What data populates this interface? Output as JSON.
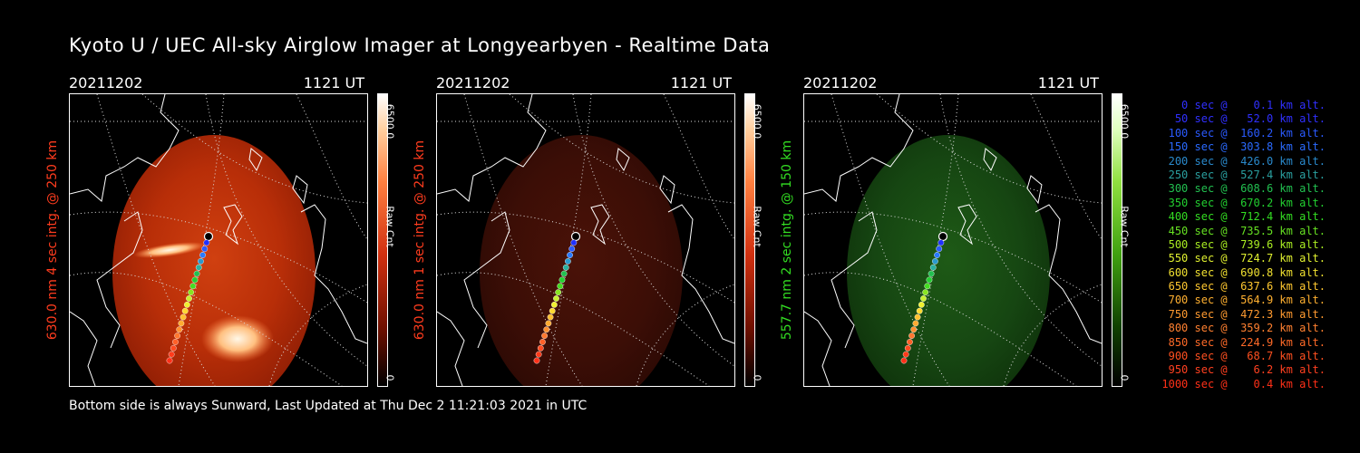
{
  "title": "Kyoto U / UEC All-sky Airglow Imager at Longyearbyen - Realtime Data",
  "footer": "Bottom side is always Sunward, Last Updated at Thu Dec  2 11:21:03 2021 in UTC",
  "panels": [
    {
      "date": "20211202",
      "time": "1121 UT",
      "ylabel": "630.0 nm 4 sec intg. @ 250 km",
      "ylabel_color": "#ff3c1e",
      "colorbar_max": "6500.0",
      "colorbar_unit": "Raw Cnt",
      "colorbar_min": "0",
      "theme": "red-bright"
    },
    {
      "date": "20211202",
      "time": "1121 UT",
      "ylabel": "630.0 nm 1 sec intg. @ 250 km",
      "ylabel_color": "#ff3c1e",
      "colorbar_max": "6500.0",
      "colorbar_unit": "Raw Cnt",
      "colorbar_min": "0",
      "theme": "red-dim"
    },
    {
      "date": "20211202",
      "time": "1121 UT",
      "ylabel": "557.7 nm 2 sec intg. @ 150 km",
      "ylabel_color": "#33dd22",
      "colorbar_max": "6500.0",
      "colorbar_unit": "Raw Cnt",
      "colorbar_min": "0",
      "theme": "green"
    }
  ],
  "legend": [
    {
      "text": "   0 sec @    0.1 km alt.",
      "color": "#3030ff"
    },
    {
      "text": "  50 sec @   52.0 km alt.",
      "color": "#3030ff"
    },
    {
      "text": " 100 sec @  160.2 km alt.",
      "color": "#2a5aff"
    },
    {
      "text": " 150 sec @  303.8 km alt.",
      "color": "#2a6aff"
    },
    {
      "text": " 200 sec @  426.0 km alt.",
      "color": "#2a8acc"
    },
    {
      "text": " 250 sec @  527.4 km alt.",
      "color": "#2aa0a0"
    },
    {
      "text": " 300 sec @  608.6 km alt.",
      "color": "#22c050"
    },
    {
      "text": " 350 sec @  670.2 km alt.",
      "color": "#22d030"
    },
    {
      "text": " 400 sec @  712.4 km alt.",
      "color": "#33dd22"
    },
    {
      "text": " 450 sec @  735.5 km alt.",
      "color": "#66e022"
    },
    {
      "text": " 500 sec @  739.6 km alt.",
      "color": "#aaee22"
    },
    {
      "text": " 550 sec @  724.7 km alt.",
      "color": "#e0f030"
    },
    {
      "text": " 600 sec @  690.8 km alt.",
      "color": "#f0e030"
    },
    {
      "text": " 650 sec @  637.6 km alt.",
      "color": "#ffc830"
    },
    {
      "text": " 700 sec @  564.9 km alt.",
      "color": "#ffb030"
    },
    {
      "text": " 750 sec @  472.3 km alt.",
      "color": "#ff9a30"
    },
    {
      "text": " 800 sec @  359.2 km alt.",
      "color": "#ff8030"
    },
    {
      "text": " 850 sec @  224.9 km alt.",
      "color": "#ff6a28"
    },
    {
      "text": " 900 sec @   68.7 km alt.",
      "color": "#ff5020"
    },
    {
      "text": " 950 sec @    6.2 km alt.",
      "color": "#ff4020"
    },
    {
      "text": "1000 sec @    0.4 km alt.",
      "color": "#ff3018"
    }
  ]
}
